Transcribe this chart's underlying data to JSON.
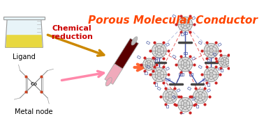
{
  "title": "Porous Molecular Conductor",
  "title_color": "#FF4500",
  "title_fontsize": 11,
  "bg_color": "#FFFFFF",
  "ligand_label": "Ligand",
  "metal_label": "Metal node",
  "chem_reduction_label": "Chemical\nreduction",
  "chem_reduction_color": "#CC0000",
  "beaker_body_color": "#E8F4F8",
  "beaker_outline_color": "#999999",
  "beaker_liquid_color": "#E8D840",
  "tube_dark_color": "#5A0000",
  "tube_pink_color": "#F0AABB",
  "tube_outline_color": "#AAAAAA",
  "arrow_gold_color": "#CC8800",
  "arrow_pink_color": "#FF88AA",
  "arrow_orange_color": "#FF6633",
  "node_ring_color": "#888888",
  "node_dot_color": "#CC2222",
  "metal_bar_color": "#444444",
  "red_rod_color": "#DD2222",
  "blue_rod_color": "#8899CC",
  "chain_link_color": "#5566AA",
  "dashed_line_color": "#AABBDD"
}
